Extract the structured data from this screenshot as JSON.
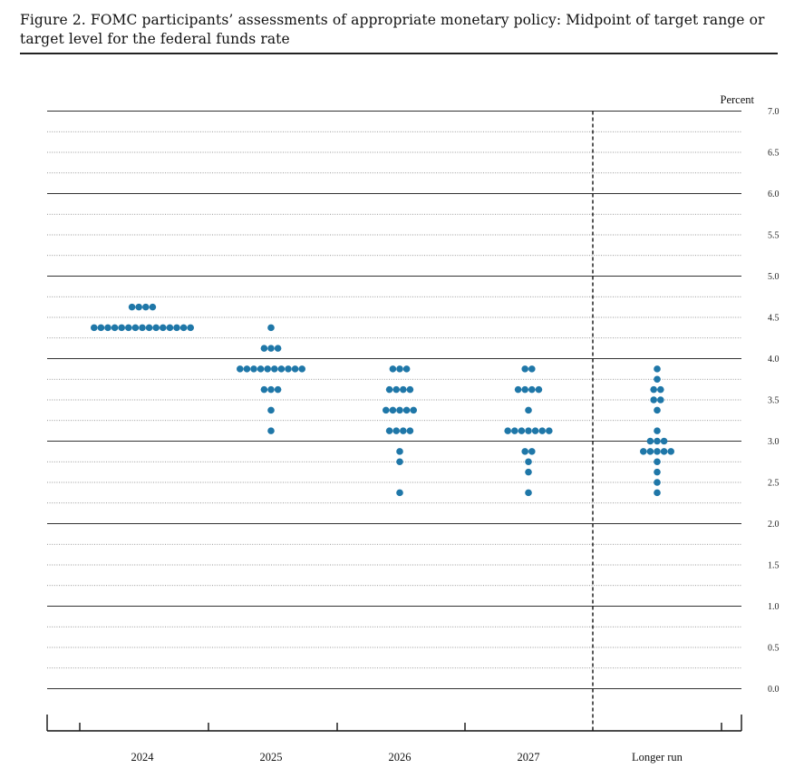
{
  "figure": {
    "title": "Figure 2.  FOMC participants’ assessments of appropriate monetary policy:  Midpoint of target range or target level for the federal funds rate"
  },
  "chart_data": {
    "type": "scatter",
    "subtype": "dot-plot",
    "y_unit_label": "Percent",
    "ylim": [
      0,
      7.0
    ],
    "y_ticks": [
      "7.0",
      "6.5",
      "6.0",
      "5.5",
      "5.0",
      "4.5",
      "4.0",
      "3.5",
      "3.0",
      "2.5",
      "2.0",
      "1.5",
      "1.0",
      "0.5",
      "0.0"
    ],
    "y_minor_step": 0.25,
    "grid": true,
    "categories": [
      "2024",
      "2025",
      "2026",
      "2027",
      "Longer run"
    ],
    "series": [
      {
        "category": "2024",
        "points": [
          {
            "y": 4.625,
            "count": 4
          },
          {
            "y": 4.375,
            "count": 15
          }
        ]
      },
      {
        "category": "2025",
        "points": [
          {
            "y": 4.375,
            "count": 1
          },
          {
            "y": 4.125,
            "count": 3
          },
          {
            "y": 3.875,
            "count": 10
          },
          {
            "y": 3.625,
            "count": 3
          },
          {
            "y": 3.375,
            "count": 1
          },
          {
            "y": 3.125,
            "count": 1
          }
        ]
      },
      {
        "category": "2026",
        "points": [
          {
            "y": 3.875,
            "count": 3
          },
          {
            "y": 3.625,
            "count": 4
          },
          {
            "y": 3.375,
            "count": 5
          },
          {
            "y": 3.125,
            "count": 4
          },
          {
            "y": 2.875,
            "count": 1
          },
          {
            "y": 2.75,
            "count": 1
          },
          {
            "y": 2.375,
            "count": 1
          }
        ]
      },
      {
        "category": "2027",
        "points": [
          {
            "y": 3.875,
            "count": 2
          },
          {
            "y": 3.625,
            "count": 4
          },
          {
            "y": 3.375,
            "count": 1
          },
          {
            "y": 3.125,
            "count": 7
          },
          {
            "y": 2.875,
            "count": 2
          },
          {
            "y": 2.75,
            "count": 1
          },
          {
            "y": 2.625,
            "count": 1
          },
          {
            "y": 2.375,
            "count": 1
          }
        ]
      },
      {
        "category": "Longer run",
        "points": [
          {
            "y": 3.875,
            "count": 1
          },
          {
            "y": 3.75,
            "count": 1
          },
          {
            "y": 3.625,
            "count": 2
          },
          {
            "y": 3.5,
            "count": 2
          },
          {
            "y": 3.375,
            "count": 1
          },
          {
            "y": 3.125,
            "count": 1
          },
          {
            "y": 3.0,
            "count": 3
          },
          {
            "y": 2.875,
            "count": 5
          },
          {
            "y": 2.75,
            "count": 1
          },
          {
            "y": 2.625,
            "count": 1
          },
          {
            "y": 2.5,
            "count": 1
          },
          {
            "y": 2.375,
            "count": 1
          }
        ]
      }
    ],
    "dot_color": "#1f77a8",
    "longer_run_separator": "dashed"
  }
}
